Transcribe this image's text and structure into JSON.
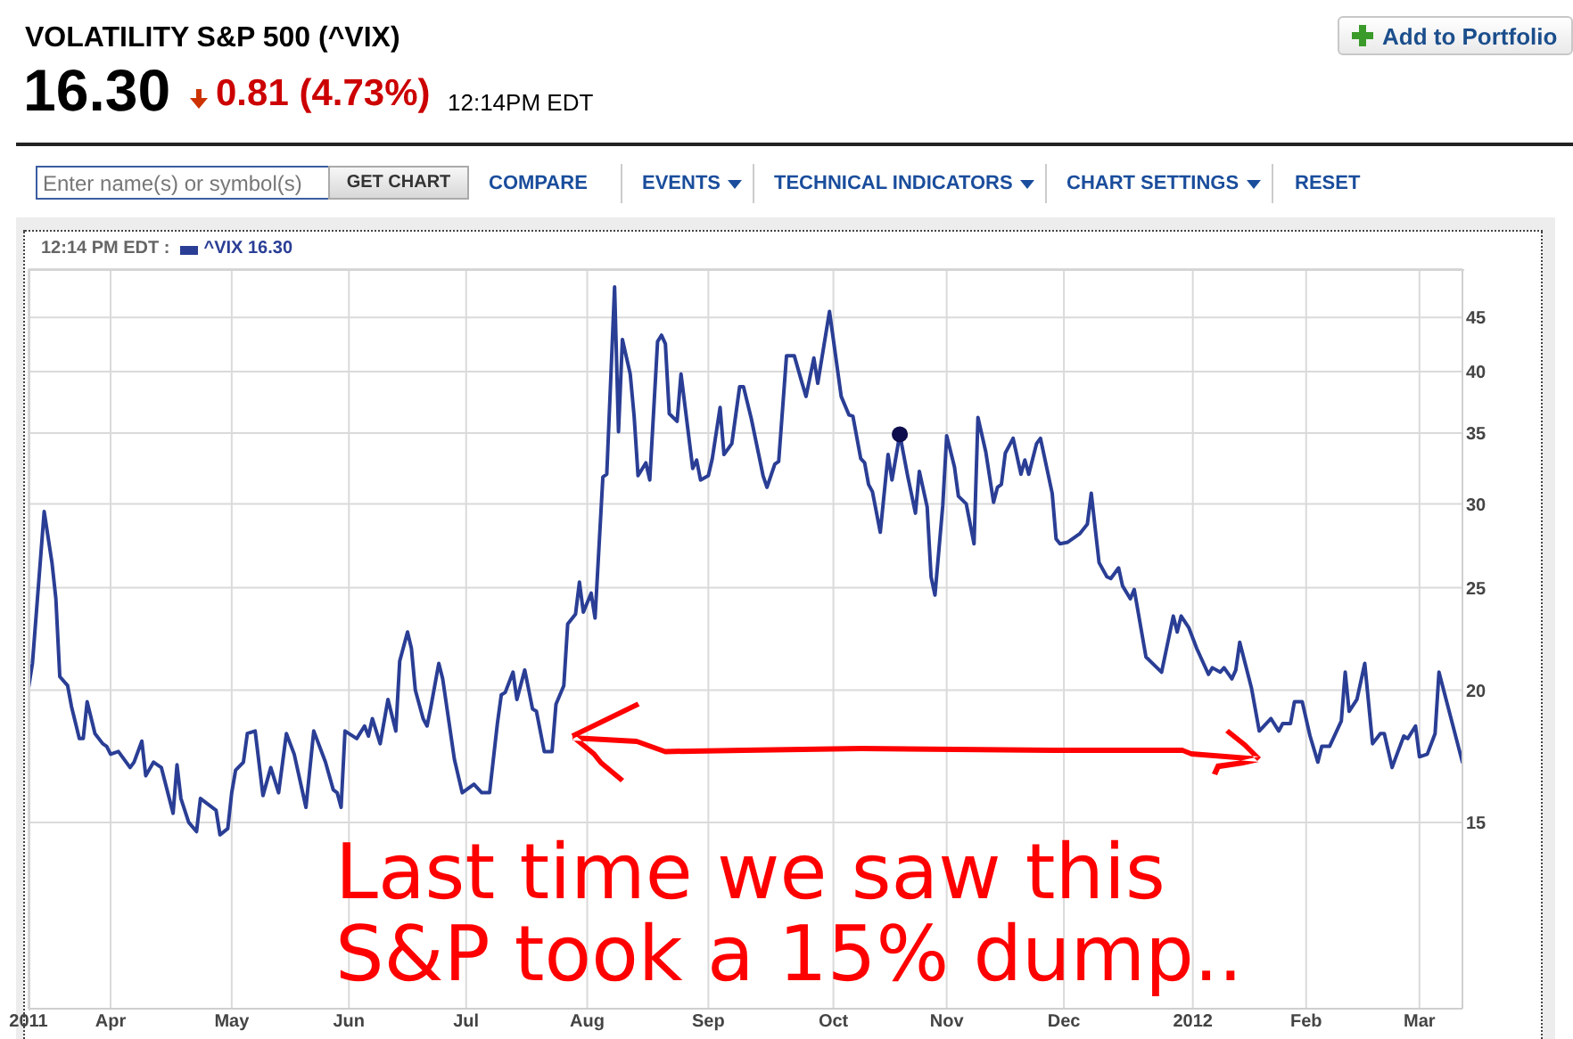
{
  "chart_data": {
    "type": "line",
    "title": "VOLATILITY S&P 500 (^VIX)",
    "subtitle": "16.30",
    "annotations": [
      "0.81 (4.73%)",
      "12:14PM EDT",
      "Add to Portfolio",
      "Enter name(s) or symbol(s)",
      "GET CHART",
      "COMPARE",
      "EVENTS",
      "TECHNICAL INDICATORS",
      "CHART SETTINGS",
      "RESET",
      "Last time we saw this\nS&P took a 15% dump.."
    ],
    "legend_title": "12:14 PM EDT :",
    "legend": "top left",
    "grid": true,
    "log": true,
    "xlim": [
      "2011-03-11",
      "2012-03-12"
    ],
    "xticks": [
      {
        "value": "2011-03-11",
        "label": "2011"
      },
      {
        "value": "2011-04-01",
        "label": "Apr"
      },
      {
        "value": "2011-05-02",
        "label": "May"
      },
      {
        "value": "2011-06-01",
        "label": "Jun"
      },
      {
        "value": "2011-07-01",
        "label": "Jul"
      },
      {
        "value": "2011-08-01",
        "label": "Aug"
      },
      {
        "value": "2011-09-01",
        "label": "Sep"
      },
      {
        "value": "2011-10-03",
        "label": "Oct"
      },
      {
        "value": "2011-11-01",
        "label": "Nov"
      },
      {
        "value": "2011-12-01",
        "label": "Dec"
      },
      {
        "value": "2012-01-03",
        "label": "2012"
      },
      {
        "value": "2012-02-01",
        "label": "Feb"
      },
      {
        "value": "2012-03-01",
        "label": "Mar"
      }
    ],
    "ylim": [
      10,
      50
    ],
    "yticks": [
      15,
      20,
      25,
      30,
      35,
      40,
      45
    ],
    "x": [
      "2011-03-11",
      "2011-03-12",
      "2011-03-15",
      "2011-03-17",
      "2011-03-18",
      "2011-03-19",
      "2011-03-21",
      "2011-03-22",
      "2011-03-24",
      "2011-03-25",
      "2011-03-26",
      "2011-03-28",
      "2011-03-30",
      "2011-03-31",
      "2011-04-01",
      "2011-04-03",
      "2011-04-06",
      "2011-04-07",
      "2011-04-09",
      "2011-04-10",
      "2011-04-12",
      "2011-04-14",
      "2011-04-17",
      "2011-04-18",
      "2011-04-19",
      "2011-04-21",
      "2011-04-23",
      "2011-04-24",
      "2011-04-28",
      "2011-04-29",
      "2011-05-01",
      "2011-05-02",
      "2011-05-03",
      "2011-05-05",
      "2011-05-06",
      "2011-05-08",
      "2011-05-10",
      "2011-05-12",
      "2011-05-14",
      "2011-05-16",
      "2011-05-18",
      "2011-05-21",
      "2011-05-23",
      "2011-05-26",
      "2011-05-28",
      "2011-05-29",
      "2011-05-30",
      "2011-05-31",
      "2011-06-03",
      "2011-06-05",
      "2011-06-06",
      "2011-06-07",
      "2011-06-09",
      "2011-06-11",
      "2011-06-13",
      "2011-06-14",
      "2011-06-16",
      "2011-06-17",
      "2011-06-18",
      "2011-06-20",
      "2011-06-21",
      "2011-06-22",
      "2011-06-24",
      "2011-06-25",
      "2011-06-28",
      "2011-06-30",
      "2011-07-03",
      "2011-07-05",
      "2011-07-07",
      "2011-07-09",
      "2011-07-10",
      "2011-07-11",
      "2011-07-13",
      "2011-07-14",
      "2011-07-16",
      "2011-07-18",
      "2011-07-19",
      "2011-07-21",
      "2011-07-23",
      "2011-07-24",
      "2011-07-26",
      "2011-07-27",
      "2011-07-29",
      "2011-07-30",
      "2011-07-31",
      "2011-08-02",
      "2011-08-03",
      "2011-08-05",
      "2011-08-06",
      "2011-08-08",
      "2011-08-09",
      "2011-08-10",
      "2011-08-12",
      "2011-08-13",
      "2011-08-14",
      "2011-08-16",
      "2011-08-17",
      "2011-08-19",
      "2011-08-20",
      "2011-08-21",
      "2011-08-22",
      "2011-08-24",
      "2011-08-25",
      "2011-08-28",
      "2011-08-29",
      "2011-08-30",
      "2011-09-01",
      "2011-09-02",
      "2011-09-04",
      "2011-09-05",
      "2011-09-07",
      "2011-09-09",
      "2011-09-10",
      "2011-09-12",
      "2011-09-15",
      "2011-09-16",
      "2011-09-18",
      "2011-09-19",
      "2011-09-21",
      "2011-09-23",
      "2011-09-25",
      "2011-09-26",
      "2011-09-28",
      "2011-09-29",
      "2011-10-02",
      "2011-10-05",
      "2011-10-07",
      "2011-10-08",
      "2011-10-10",
      "2011-10-11",
      "2011-10-12",
      "2011-10-13",
      "2011-10-15",
      "2011-10-17",
      "2011-10-18",
      "2011-10-20",
      "2011-10-22",
      "2011-10-24",
      "2011-10-25",
      "2011-10-27",
      "2011-10-28",
      "2011-10-29",
      "2011-10-31",
      "2011-11-01",
      "2011-11-03",
      "2011-11-04",
      "2011-11-06",
      "2011-11-08",
      "2011-11-09",
      "2011-11-11",
      "2011-11-13",
      "2011-11-14",
      "2011-11-15",
      "2011-11-16",
      "2011-11-18",
      "2011-11-20",
      "2011-11-21",
      "2011-11-22",
      "2011-11-24",
      "2011-11-25",
      "2011-11-28",
      "2011-11-29",
      "2011-11-30",
      "2011-12-02",
      "2011-12-05",
      "2011-12-07",
      "2011-12-08",
      "2011-12-10",
      "2011-12-12",
      "2011-12-13",
      "2011-12-15",
      "2011-12-16",
      "2011-12-18",
      "2011-12-19",
      "2011-12-22",
      "2011-12-26",
      "2011-12-29",
      "2011-12-30",
      "2011-12-31",
      "2012-01-02",
      "2012-01-04",
      "2012-01-07",
      "2012-01-08",
      "2012-01-10",
      "2012-01-11",
      "2012-01-13",
      "2012-01-14",
      "2012-01-15",
      "2012-01-18",
      "2012-01-20",
      "2012-01-23",
      "2012-01-25",
      "2012-01-26",
      "2012-01-28",
      "2012-01-29",
      "2012-01-31",
      "2012-02-02",
      "2012-02-04",
      "2012-02-05",
      "2012-02-07",
      "2012-02-10",
      "2012-02-11",
      "2012-02-12",
      "2012-02-14",
      "2012-02-16",
      "2012-02-18",
      "2012-02-20",
      "2012-02-21",
      "2012-02-23",
      "2012-02-24",
      "2012-02-26",
      "2012-02-27",
      "2012-02-29",
      "2012-03-01",
      "2012-03-03",
      "2012-03-05",
      "2012-03-06",
      "2012-03-12"
    ],
    "series": [
      {
        "name": "^VIX 16.30",
        "color": "#2a3e95",
        "values": [
          20.1,
          21.2,
          29.5,
          26.4,
          24.4,
          20.6,
          20.2,
          19.3,
          18.0,
          18.0,
          19.5,
          18.2,
          17.8,
          17.7,
          17.4,
          17.5,
          16.9,
          17.1,
          17.9,
          16.6,
          17.1,
          16.9,
          15.3,
          17.0,
          15.8,
          15.0,
          14.7,
          15.8,
          15.4,
          14.6,
          14.8,
          16.0,
          16.8,
          17.1,
          18.2,
          18.3,
          15.9,
          16.9,
          16.0,
          18.2,
          17.4,
          15.5,
          18.3,
          17.1,
          16.1,
          16.0,
          15.5,
          18.3,
          18.0,
          18.5,
          18.1,
          18.8,
          17.8,
          19.6,
          18.3,
          21.3,
          22.7,
          21.9,
          20.0,
          18.8,
          18.5,
          19.3,
          21.2,
          20.5,
          17.2,
          16.0,
          16.3,
          16.0,
          16.0,
          18.6,
          19.8,
          19.9,
          20.8,
          19.6,
          20.9,
          19.2,
          19.1,
          17.5,
          17.5,
          19.4,
          20.2,
          23.1,
          23.6,
          25.3,
          23.7,
          24.7,
          23.4,
          31.8,
          32.0,
          48.1,
          35.1,
          42.9,
          39.8,
          36.3,
          31.9,
          32.8,
          31.6,
          42.7,
          43.3,
          42.5,
          36.5,
          35.9,
          39.8,
          32.4,
          33.0,
          31.6,
          31.9,
          33.1,
          37.0,
          33.4,
          34.2,
          38.7,
          38.7,
          36.1,
          31.9,
          31.1,
          32.7,
          32.9,
          41.4,
          41.4,
          39.0,
          37.9,
          41.2,
          39.0,
          45.6,
          37.9,
          36.4,
          36.3,
          33.1,
          32.8,
          31.3,
          30.8,
          28.2,
          33.4,
          31.6,
          34.9,
          31.9,
          29.4,
          32.2,
          29.8,
          25.6,
          24.6,
          29.9,
          34.8,
          32.5,
          30.5,
          30.0,
          27.5,
          36.2,
          33.6,
          30.1,
          31.1,
          31.3,
          33.5,
          34.6,
          32.0,
          33.0,
          32.0,
          34.2,
          34.6,
          30.7,
          27.8,
          27.5,
          27.6,
          28.1,
          28.7,
          30.7,
          26.4,
          25.6,
          25.5,
          26.1,
          25.1,
          24.4,
          24.9,
          21.5,
          20.8,
          23.5,
          22.7,
          23.5,
          22.9,
          21.9,
          20.7,
          21.0,
          20.8,
          21.0,
          20.5,
          20.9,
          22.2,
          20.1,
          18.3,
          18.8,
          18.3,
          18.6,
          18.6,
          19.5,
          19.5,
          18.1,
          17.1,
          17.7,
          17.7,
          18.7,
          20.8,
          19.1,
          19.6,
          21.2,
          17.8,
          18.2,
          18.2,
          16.9,
          17.3,
          18.1,
          18.0,
          18.5,
          17.3,
          17.4,
          18.2,
          20.8,
          17.1
        ]
      },
      {
        "type": "scatter",
        "color": "#0d0d4d",
        "marker": "circle",
        "x": [
          "2011-10-20"
        ],
        "values": [
          34.9
        ]
      }
    ]
  }
}
